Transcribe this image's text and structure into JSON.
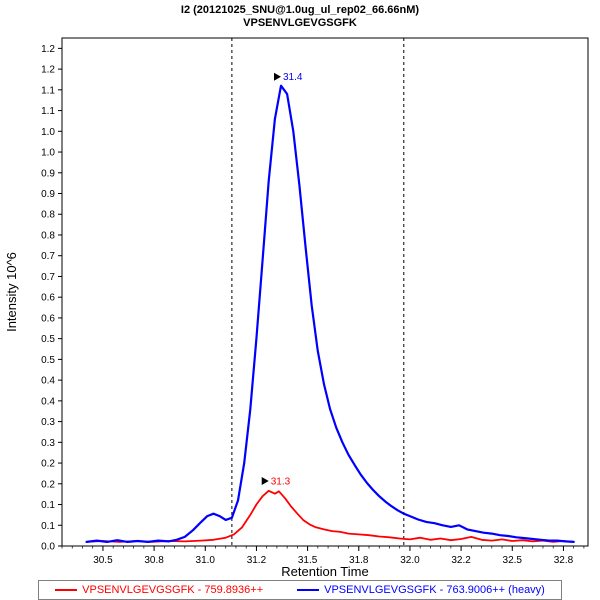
{
  "header": {
    "title_line1": "I2 (20121025_SNU@1.0ug_ul_rep02_66.66nM)",
    "title_line2": "VPSENVLGEVGSGFK"
  },
  "chart_data": {
    "type": "line",
    "title": "I2 (20121025_SNU@1.0ug_ul_rep02_66.66nM)",
    "subtitle": "VPSENVLGEVGSGFK",
    "xlabel": "Retention Time",
    "ylabel": "Intensity 10^6",
    "xlim": [
      30.3,
      32.87
    ],
    "ylim": [
      0,
      1.225
    ],
    "grid": false,
    "legend_position": "bottom",
    "x_tick_values": [
      30.5,
      30.75,
      31.0,
      31.25,
      31.5,
      31.75,
      32.0,
      32.25,
      32.5,
      32.75
    ],
    "x_tick_labels": [
      "30.5",
      "30.8",
      "31.0",
      "31.2",
      "31.5",
      "31.8",
      "32.0",
      "32.2",
      "32.5",
      "32.8"
    ],
    "y_tick_values": [
      0,
      0.05,
      0.1,
      0.15,
      0.2,
      0.25,
      0.3,
      0.35,
      0.4,
      0.45,
      0.5,
      0.55,
      0.6,
      0.65,
      0.7,
      0.75,
      0.8,
      0.85,
      0.9,
      0.95,
      1.0,
      1.05,
      1.1,
      1.15,
      1.2
    ],
    "y_tick_labels": [
      "0.0",
      "0.1",
      "0.1",
      "0.2",
      "0.2",
      "0.3",
      "0.3",
      "0.4",
      "0.4",
      "0.5",
      "0.5",
      "0.6",
      "0.6",
      "0.7",
      "0.7",
      "0.8",
      "0.8",
      "0.9",
      "0.9",
      "1.0",
      "1.0",
      "1.1",
      "1.1",
      "1.2",
      "1.2"
    ],
    "boundaries": [
      31.13,
      31.97
    ],
    "series": [
      {
        "name": "VPSENVLGEVGSGFK - 759.8936++",
        "color": "#ff0000",
        "width": 1.8,
        "peak_label": "31.3",
        "peak_x": 31.31,
        "peak_y": 0.135,
        "points": [
          [
            30.42,
            0.01
          ],
          [
            30.5,
            0.012
          ],
          [
            30.58,
            0.01
          ],
          [
            30.66,
            0.012
          ],
          [
            30.74,
            0.01
          ],
          [
            30.82,
            0.012
          ],
          [
            30.9,
            0.011
          ],
          [
            30.98,
            0.013
          ],
          [
            31.04,
            0.015
          ],
          [
            31.1,
            0.02
          ],
          [
            31.14,
            0.028
          ],
          [
            31.18,
            0.045
          ],
          [
            31.22,
            0.075
          ],
          [
            31.25,
            0.1
          ],
          [
            31.28,
            0.12
          ],
          [
            31.31,
            0.133
          ],
          [
            31.34,
            0.126
          ],
          [
            31.36,
            0.132
          ],
          [
            31.39,
            0.115
          ],
          [
            31.42,
            0.095
          ],
          [
            31.45,
            0.078
          ],
          [
            31.48,
            0.062
          ],
          [
            31.51,
            0.052
          ],
          [
            31.54,
            0.045
          ],
          [
            31.58,
            0.04
          ],
          [
            31.62,
            0.036
          ],
          [
            31.66,
            0.034
          ],
          [
            31.7,
            0.03
          ],
          [
            31.75,
            0.028
          ],
          [
            31.8,
            0.026
          ],
          [
            31.85,
            0.023
          ],
          [
            31.9,
            0.021
          ],
          [
            31.95,
            0.018
          ],
          [
            32.0,
            0.016
          ],
          [
            32.05,
            0.02
          ],
          [
            32.1,
            0.015
          ],
          [
            32.15,
            0.018
          ],
          [
            32.2,
            0.014
          ],
          [
            32.25,
            0.017
          ],
          [
            32.3,
            0.022
          ],
          [
            32.35,
            0.015
          ],
          [
            32.4,
            0.013
          ],
          [
            32.45,
            0.016
          ],
          [
            32.5,
            0.012
          ],
          [
            32.55,
            0.014
          ],
          [
            32.6,
            0.011
          ],
          [
            32.65,
            0.013
          ],
          [
            32.7,
            0.01
          ],
          [
            32.75,
            0.012
          ],
          [
            32.8,
            0.01
          ]
        ]
      },
      {
        "name": "VPSENVLGEVGSGFK - 763.9006++ (heavy)",
        "color": "#0000ff",
        "width": 2.2,
        "peak_label": "31.4",
        "peak_x": 31.37,
        "peak_y": 1.11,
        "points": [
          [
            30.42,
            0.01
          ],
          [
            30.47,
            0.013
          ],
          [
            30.52,
            0.01
          ],
          [
            30.57,
            0.014
          ],
          [
            30.62,
            0.01
          ],
          [
            30.67,
            0.012
          ],
          [
            30.72,
            0.01
          ],
          [
            30.77,
            0.013
          ],
          [
            30.82,
            0.011
          ],
          [
            30.86,
            0.015
          ],
          [
            30.9,
            0.022
          ],
          [
            30.94,
            0.038
          ],
          [
            30.98,
            0.058
          ],
          [
            31.01,
            0.072
          ],
          [
            31.04,
            0.078
          ],
          [
            31.07,
            0.072
          ],
          [
            31.1,
            0.063
          ],
          [
            31.13,
            0.068
          ],
          [
            31.16,
            0.11
          ],
          [
            31.19,
            0.2
          ],
          [
            31.22,
            0.33
          ],
          [
            31.25,
            0.5
          ],
          [
            31.28,
            0.69
          ],
          [
            31.31,
            0.88
          ],
          [
            31.34,
            1.03
          ],
          [
            31.37,
            1.11
          ],
          [
            31.4,
            1.09
          ],
          [
            31.43,
            1.0
          ],
          [
            31.46,
            0.87
          ],
          [
            31.49,
            0.72
          ],
          [
            31.52,
            0.58
          ],
          [
            31.55,
            0.47
          ],
          [
            31.58,
            0.39
          ],
          [
            31.61,
            0.33
          ],
          [
            31.64,
            0.285
          ],
          [
            31.67,
            0.25
          ],
          [
            31.7,
            0.22
          ],
          [
            31.73,
            0.195
          ],
          [
            31.76,
            0.172
          ],
          [
            31.79,
            0.152
          ],
          [
            31.82,
            0.135
          ],
          [
            31.85,
            0.12
          ],
          [
            31.88,
            0.107
          ],
          [
            31.91,
            0.096
          ],
          [
            31.94,
            0.086
          ],
          [
            31.97,
            0.078
          ],
          [
            32.0,
            0.072
          ],
          [
            32.04,
            0.064
          ],
          [
            32.08,
            0.058
          ],
          [
            32.12,
            0.055
          ],
          [
            32.16,
            0.05
          ],
          [
            32.2,
            0.046
          ],
          [
            32.24,
            0.05
          ],
          [
            32.28,
            0.04
          ],
          [
            32.32,
            0.036
          ],
          [
            32.36,
            0.032
          ],
          [
            32.4,
            0.03
          ],
          [
            32.44,
            0.026
          ],
          [
            32.48,
            0.024
          ],
          [
            32.52,
            0.021
          ],
          [
            32.56,
            0.019
          ],
          [
            32.6,
            0.017
          ],
          [
            32.64,
            0.015
          ],
          [
            32.68,
            0.013
          ],
          [
            32.72,
            0.013
          ],
          [
            32.76,
            0.011
          ],
          [
            32.8,
            0.01
          ]
        ]
      }
    ]
  },
  "legend": {
    "entries": [
      {
        "label": "VPSENVLGEVGSGFK - 759.8936++",
        "color": "#ff0000"
      },
      {
        "label": "VPSENVLGEVGSGFK - 763.9006++ (heavy)",
        "color": "#0000ff"
      }
    ]
  }
}
